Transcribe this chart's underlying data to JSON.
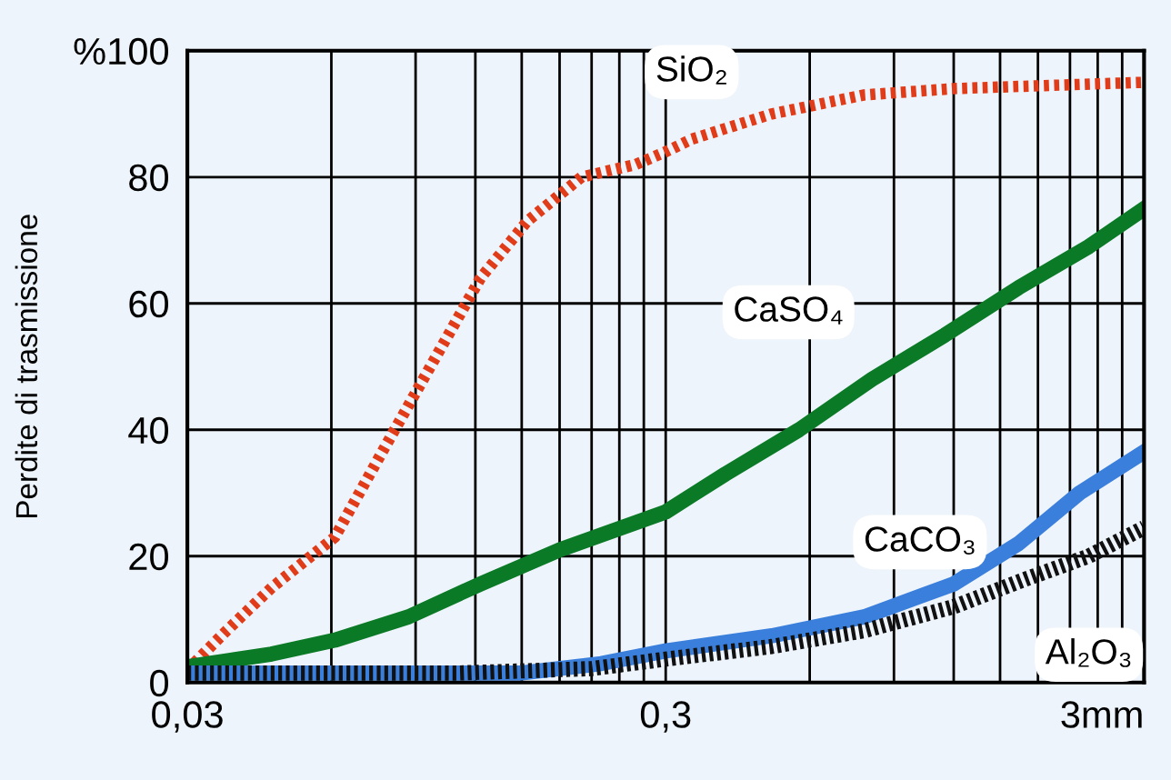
{
  "chart_data": {
    "type": "line",
    "ylabel": "Perdite di trasmissione",
    "log": "x",
    "grid": true,
    "legend": false,
    "xlim": [
      0.03,
      3
    ],
    "ylim": [
      0,
      100
    ],
    "xticks": [
      {
        "value": 0.03,
        "label": "0,03"
      },
      {
        "value": 0.06,
        "label": null
      },
      {
        "value": 0.09,
        "label": null
      },
      {
        "value": 0.12,
        "label": null
      },
      {
        "value": 0.15,
        "label": null
      },
      {
        "value": 0.18,
        "label": null
      },
      {
        "value": 0.21,
        "label": null
      },
      {
        "value": 0.24,
        "label": null
      },
      {
        "value": 0.27,
        "label": null
      },
      {
        "value": 0.3,
        "label": "0,3"
      },
      {
        "value": 0.6,
        "label": null
      },
      {
        "value": 0.9,
        "label": null
      },
      {
        "value": 1.2,
        "label": null
      },
      {
        "value": 1.5,
        "label": null
      },
      {
        "value": 1.8,
        "label": null
      },
      {
        "value": 2.1,
        "label": null
      },
      {
        "value": 2.4,
        "label": null
      },
      {
        "value": 2.7,
        "label": null
      },
      {
        "value": 3,
        "label": "3mm"
      }
    ],
    "yticks": [
      0,
      20,
      40,
      60,
      80,
      {
        "value": 100,
        "label": "%100"
      }
    ],
    "series": [
      {
        "name": "SiO₂",
        "color": "#e03c1a",
        "line_style": "dotted",
        "x": [
          0.03,
          0.036,
          0.045,
          0.061,
          0.076,
          0.095,
          0.123,
          0.154,
          0.2,
          0.26,
          0.3,
          0.34,
          0.5,
          0.78,
          1.2,
          1.9,
          3
        ],
        "values": [
          2,
          8,
          15,
          23,
          36,
          49,
          64,
          73,
          80,
          82,
          84,
          86,
          90,
          93,
          94,
          94.5,
          95
        ]
      },
      {
        "name": "CaSO₄",
        "color": "#0b7a26",
        "line_style": "solid",
        "x": [
          0.03,
          0.045,
          0.061,
          0.087,
          0.123,
          0.18,
          0.3,
          0.4,
          0.57,
          0.81,
          1.15,
          1.64,
          2.3,
          3
        ],
        "values": [
          2.5,
          4.5,
          6.7,
          10.4,
          15.6,
          21,
          27,
          33,
          40,
          48,
          55,
          62.5,
          69,
          75
        ]
      },
      {
        "name": "CaCO₃",
        "color": "#3a7fdc",
        "line_style": "solid",
        "x": [
          0.03,
          0.07,
          0.15,
          0.22,
          0.3,
          0.5,
          0.78,
          1.2,
          1.64,
          2.2,
          3
        ],
        "values": [
          1.5,
          1.5,
          1.5,
          3,
          5,
          7.4,
          10.4,
          15.6,
          22,
          30,
          36.5
        ]
      },
      {
        "name": "Al₂O₃",
        "color": "#111111",
        "line_style": "dotted",
        "x": [
          0.03,
          0.11,
          0.21,
          0.3,
          0.5,
          0.78,
          1.2,
          1.7,
          2.3,
          3
        ],
        "values": [
          1.5,
          1.5,
          2.2,
          3.7,
          5.7,
          8.2,
          12,
          16.4,
          20,
          24.5
        ]
      }
    ]
  }
}
